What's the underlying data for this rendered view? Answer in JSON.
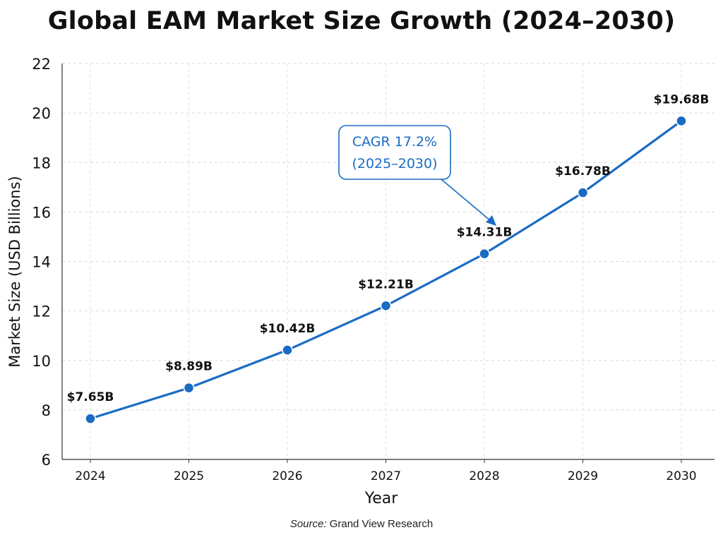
{
  "chart_data": {
    "type": "line",
    "title": "Global EAM Market Size Growth (2024–2030)",
    "xlabel": "Year",
    "ylabel": "Market Size (USD Billions)",
    "ylim": [
      6,
      22
    ],
    "yticks": [
      6,
      8,
      10,
      12,
      14,
      16,
      18,
      20,
      22
    ],
    "categories": [
      "2024",
      "2025",
      "2026",
      "2027",
      "2028",
      "2029",
      "2030"
    ],
    "series": [
      {
        "values": [
          7.65,
          8.89,
          10.42,
          12.21,
          14.31,
          16.78,
          19.68
        ],
        "labels": [
          "$7.65B",
          "$8.89B",
          "$10.42B",
          "$12.21B",
          "$14.31B",
          "$16.78B",
          "$19.68B"
        ]
      }
    ],
    "grid": true,
    "line_color": "#1a6bc4",
    "annotation": {
      "line1": "CAGR 17.2%",
      "line2": "(2025–2030)",
      "color": "#1a6bc4"
    }
  },
  "source": {
    "label": "Source:",
    "text": "Grand View Research"
  }
}
